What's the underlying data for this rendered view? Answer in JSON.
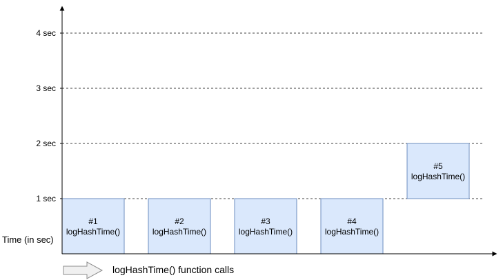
{
  "y_axis": {
    "title": "Time (in sec)",
    "ticks": [
      {
        "value": 4,
        "label": "4 sec"
      },
      {
        "value": 3,
        "label": "3 sec"
      },
      {
        "value": 2,
        "label": "2 sec"
      },
      {
        "value": 1,
        "label": "1 sec"
      }
    ]
  },
  "calls": [
    {
      "id": "#1",
      "name": "logHashTime()",
      "start": 0,
      "end": 1
    },
    {
      "id": "#2",
      "name": "logHashTime()",
      "start": 0,
      "end": 1
    },
    {
      "id": "#3",
      "name": "logHashTime()",
      "start": 0,
      "end": 1
    },
    {
      "id": "#4",
      "name": "logHashTime()",
      "start": 0,
      "end": 1
    },
    {
      "id": "#5",
      "name": "logHashTime()",
      "start": 1,
      "end": 2
    }
  ],
  "legend": {
    "label": "logHashTime() function calls",
    "arrow_icon": "right-arrow-icon"
  },
  "colors": {
    "box_fill": "#dae8fc",
    "box_stroke": "#6c8ebf",
    "axis": "#000000",
    "gridline": "#000000",
    "legend_arrow_fill": "#f0f0f0",
    "legend_arrow_stroke": "#8c8c8c"
  }
}
